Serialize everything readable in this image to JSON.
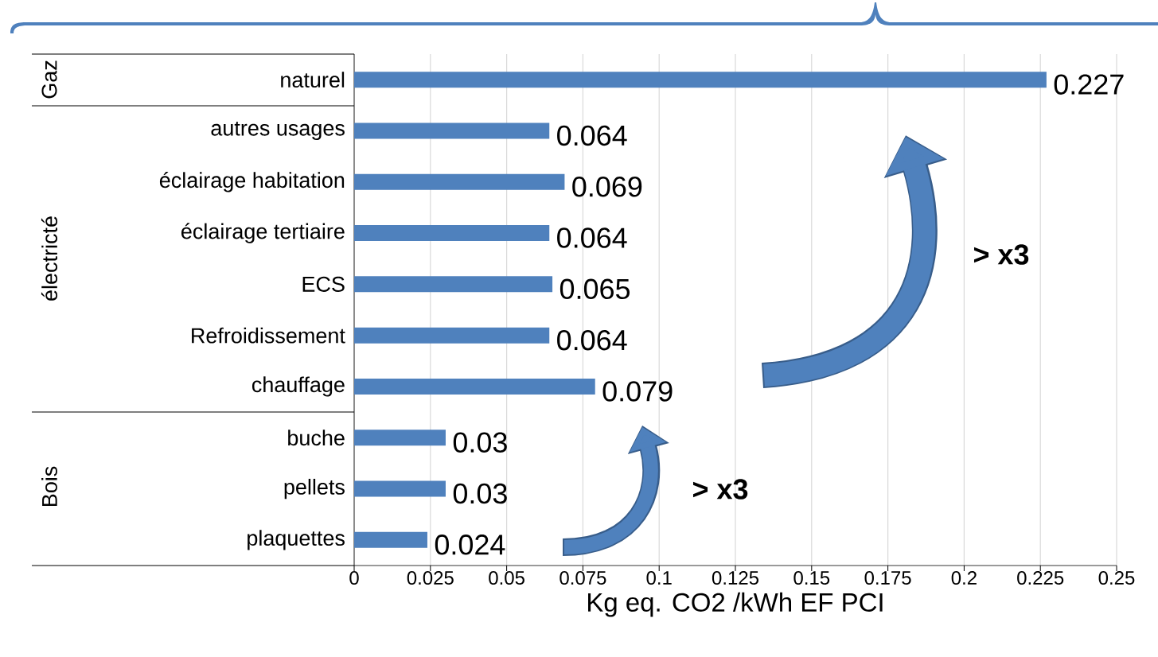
{
  "chart_data": {
    "type": "bar",
    "orientation": "horizontal",
    "categories": [
      "naturel",
      "autres usages",
      "éclairage habitation",
      "éclairage tertiaire",
      "ECS",
      "Refroidissement",
      "chauffage",
      "buche",
      "pellets",
      "plaquettes"
    ],
    "values": [
      0.227,
      0.064,
      0.069,
      0.064,
      0.065,
      0.064,
      0.079,
      0.03,
      0.03,
      0.024
    ],
    "color": "#4f81bd",
    "data_labels": true,
    "xlabel": "Kg eq. CO2 /kWh EF PCI",
    "xlim": [
      0,
      0.25
    ],
    "xticks": [
      0,
      0.025,
      0.05,
      0.075,
      0.1,
      0.125,
      0.15,
      0.175,
      0.2,
      0.225,
      0.25
    ],
    "grid": "x",
    "annotations": [
      "Gaz",
      "électricté",
      "Bois",
      "> x3",
      "> x3"
    ]
  }
}
